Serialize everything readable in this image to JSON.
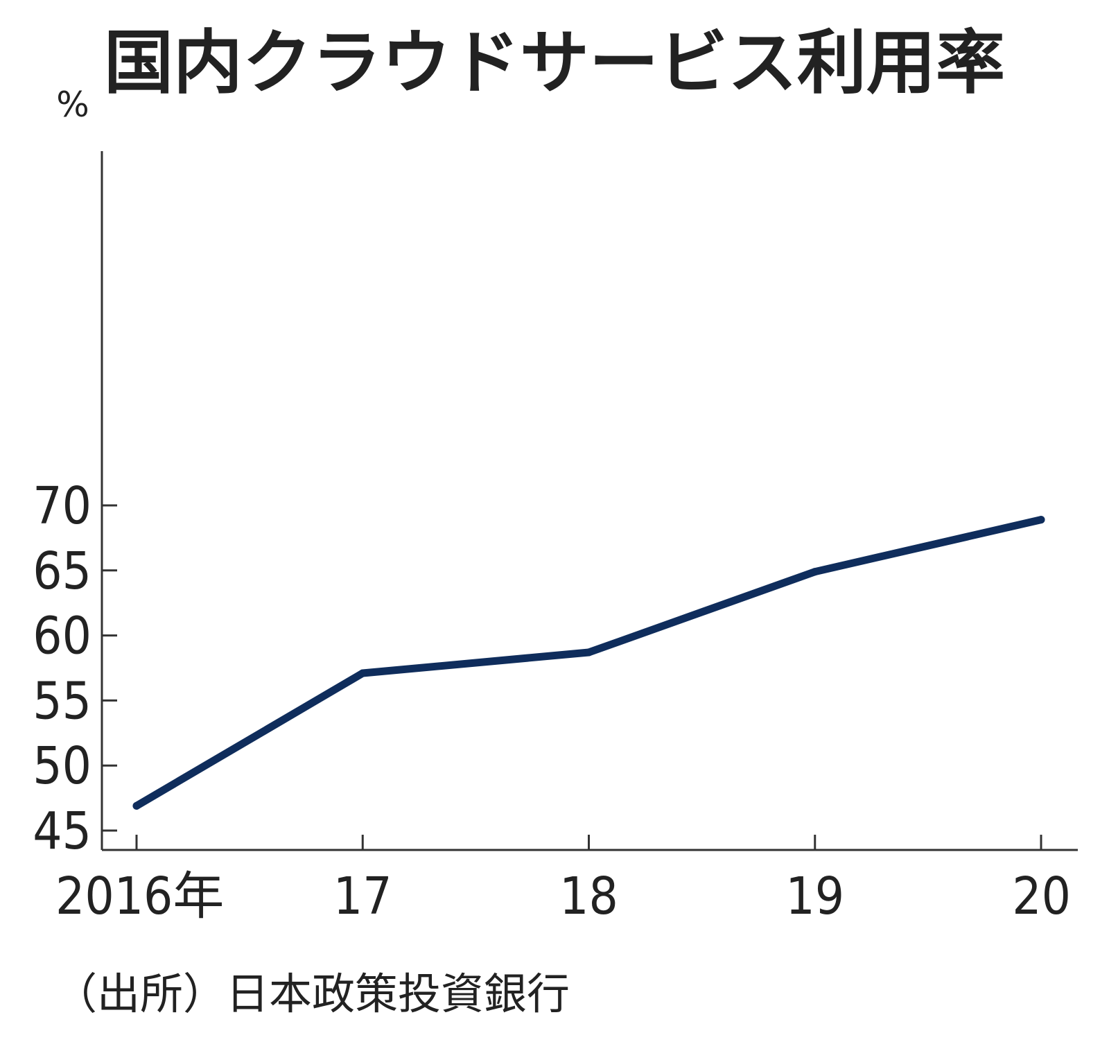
{
  "chart_data": {
    "type": "line",
    "title": "国内クラウドサービス利用率",
    "y_unit": "%",
    "x": [
      "2016年",
      "17",
      "18",
      "19",
      "20"
    ],
    "series": [
      {
        "values": [
          46.9,
          57.1,
          58.7,
          64.9,
          68.9
        ]
      }
    ],
    "ylim": [
      45,
      70
    ],
    "y_ticks": [
      45,
      50,
      55,
      60,
      65,
      70
    ],
    "grid": false,
    "legend": "none",
    "source": "（出所）日本政策投資銀行",
    "colors": {
      "line": "#0f2d5c",
      "axis": "#333333",
      "text": "#222222"
    }
  }
}
